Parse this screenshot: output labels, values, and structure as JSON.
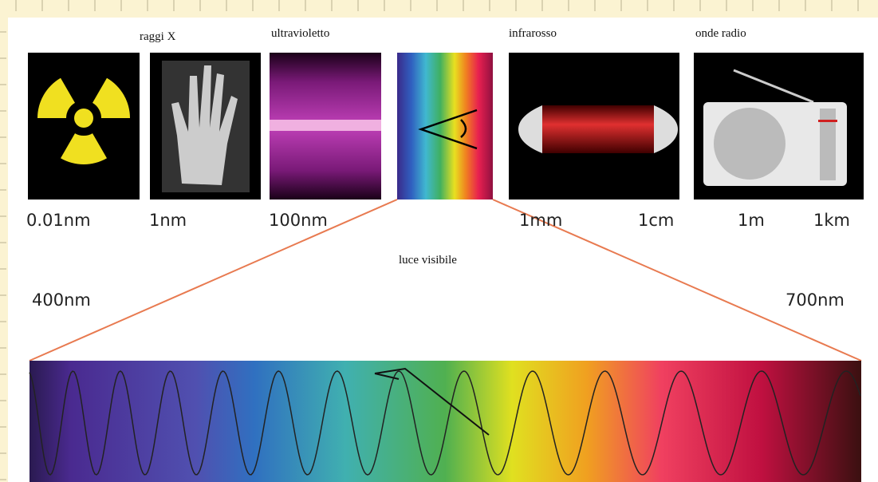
{
  "bands": [
    {
      "label": "raggi X"
    },
    {
      "label": "ultravioletto"
    },
    {
      "label": "infrarosso"
    },
    {
      "label": "onde radio"
    }
  ],
  "scale_labels": [
    "0.01nm",
    "1nm",
    "100nm",
    "1mm",
    "1cm",
    "1m",
    "1km"
  ],
  "visible": {
    "label": "luce visibile",
    "start": "400nm",
    "end": "700nm"
  }
}
